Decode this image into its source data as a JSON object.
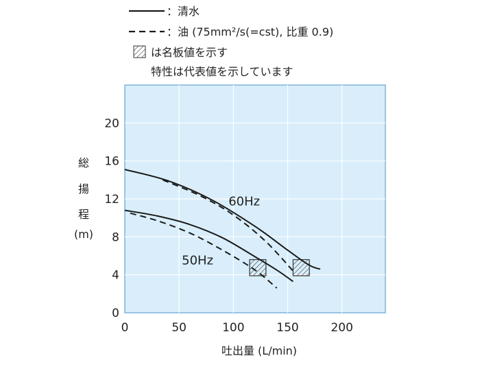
{
  "chart_data": {
    "type": "line",
    "xlabel": "吐出量 (L/min)",
    "ylabel_chars": [
      "総",
      "揚",
      "程",
      "(m)"
    ],
    "xlim": [
      0,
      240
    ],
    "ylim": [
      0,
      24
    ],
    "xticks": [
      0,
      50,
      100,
      150,
      200
    ],
    "yticks": [
      0,
      4,
      8,
      12,
      16,
      20
    ],
    "grid": true,
    "background": "#d9eefa",
    "frame_color": "#7fb3d9",
    "grid_color": "#ffffff",
    "line_color": "#1a1a1a",
    "legend": {
      "solid": "：清水",
      "dashed": "：油 (75mm²/s(=cst), 比重 0.9)",
      "hatch_line1": "は名板値を示す",
      "hatch_line2": "特性は代表値を示しています"
    },
    "series": [
      {
        "label": "60Hz",
        "fluid": "清水",
        "style": "solid",
        "x": [
          0,
          40,
          80,
          120,
          150,
          170,
          180
        ],
        "y": [
          15.1,
          13.9,
          11.9,
          9.1,
          6.6,
          5.0,
          4.6
        ]
      },
      {
        "label": "60Hz",
        "fluid": "油",
        "style": "dashed",
        "x": [
          35,
          70,
          100,
          130,
          155
        ],
        "y": [
          14.0,
          12.3,
          10.3,
          7.5,
          4.4
        ]
      },
      {
        "label": "50Hz",
        "fluid": "清水",
        "style": "solid",
        "x": [
          0,
          30,
          60,
          90,
          120,
          140,
          155
        ],
        "y": [
          10.8,
          10.2,
          9.3,
          7.9,
          5.9,
          4.5,
          3.3
        ]
      },
      {
        "label": "50Hz",
        "fluid": "油",
        "style": "dashed",
        "x": [
          5,
          30,
          60,
          90,
          120,
          140
        ],
        "y": [
          10.5,
          9.7,
          8.4,
          6.6,
          4.5,
          2.6
        ]
      }
    ],
    "series_labels": [
      {
        "text": "60Hz",
        "x": 110,
        "y": 11.3
      },
      {
        "text": "50Hz",
        "x": 67,
        "y": 5.1
      }
    ],
    "rated_boxes": [
      {
        "name": "50Hz",
        "x0": 115,
        "x1": 130,
        "y0": 3.9,
        "y1": 5.6
      },
      {
        "name": "60Hz",
        "x0": 155,
        "x1": 170,
        "y0": 3.9,
        "y1": 5.6
      }
    ]
  }
}
